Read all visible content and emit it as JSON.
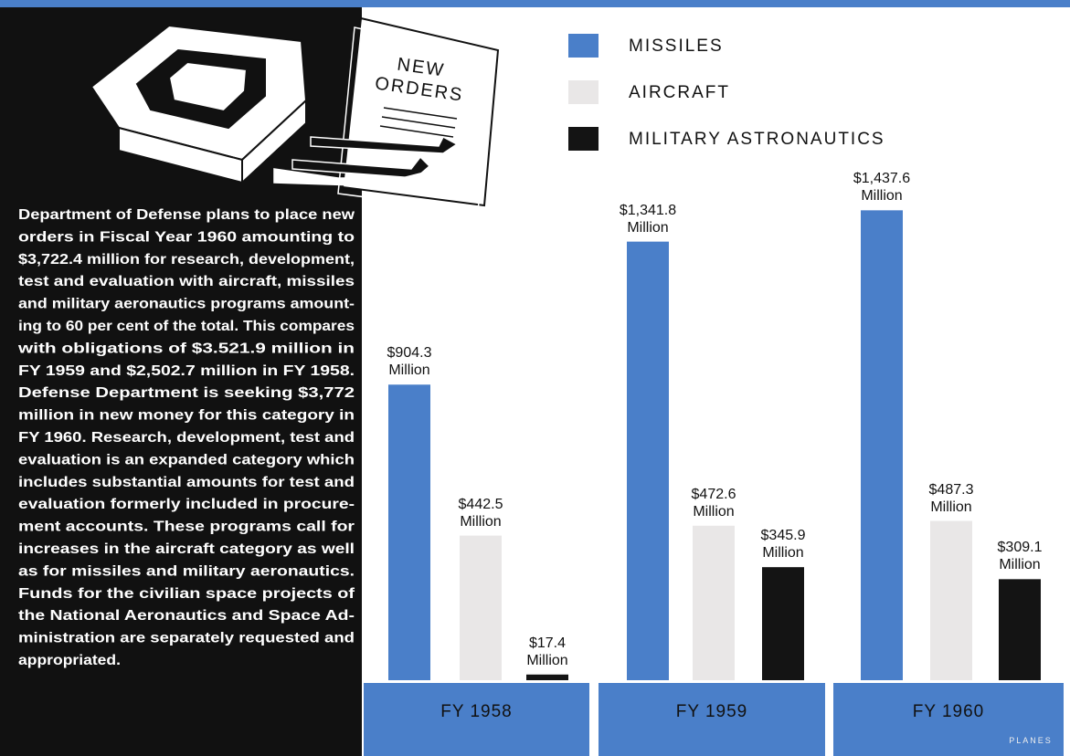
{
  "chart_data": {
    "type": "bar",
    "categories": [
      "FY 1958",
      "FY 1959",
      "FY 1960"
    ],
    "series": [
      {
        "name": "MISSILES",
        "color": "#4a7fc9",
        "values": [
          904.3,
          1341.8,
          1437.6
        ],
        "value_labels": [
          "$904.3 Million",
          "$1,341.8 Million",
          "$1,437.6 Million"
        ]
      },
      {
        "name": "AIRCRAFT",
        "color": "#e9e7e7",
        "values": [
          442.5,
          472.6,
          487.3
        ],
        "value_labels": [
          "$442.5 Million",
          "$472.6 Million",
          "$487.3 Million"
        ]
      },
      {
        "name": "MILITARY ASTRONAUTICS",
        "color": "#141414",
        "values": [
          17.4,
          345.9,
          309.1
        ],
        "value_labels": [
          "$17.4 Million",
          "$345.9 Million",
          "$309.1 Million"
        ]
      }
    ]
  },
  "article": {
    "lines": [
      "Department of Defense plans to place new",
      "orders in Fiscal Year 1960 amounting to",
      "$3,722.4 million for research, development,",
      "test and evaluation with aircraft, missiles",
      "and military aeronautics programs amount-",
      "ing to 60 per cent of the total. This compares",
      "with obligations of $3.521.9 million in",
      "FY 1959 and $2,502.7 million in FY 1958.",
      "Defense Department is seeking $3,772",
      "million in new money for this category in",
      "FY 1960. Research, development, test and",
      "evaluation is an expanded category which",
      "includes substantial amounts for test and",
      "evaluation formerly included in procure-",
      "ment accounts. These programs call for",
      "increases in the aircraft category as well",
      "as for missiles and military aeronautics.",
      "Funds for the civilian space projects of",
      "the National Aeronautics and Space Ad-",
      "ministration are separately requested and",
      "appropriated."
    ]
  },
  "illustration": {
    "document_lines": [
      "NEW",
      "ORDERS"
    ]
  },
  "footer": "PLANES"
}
